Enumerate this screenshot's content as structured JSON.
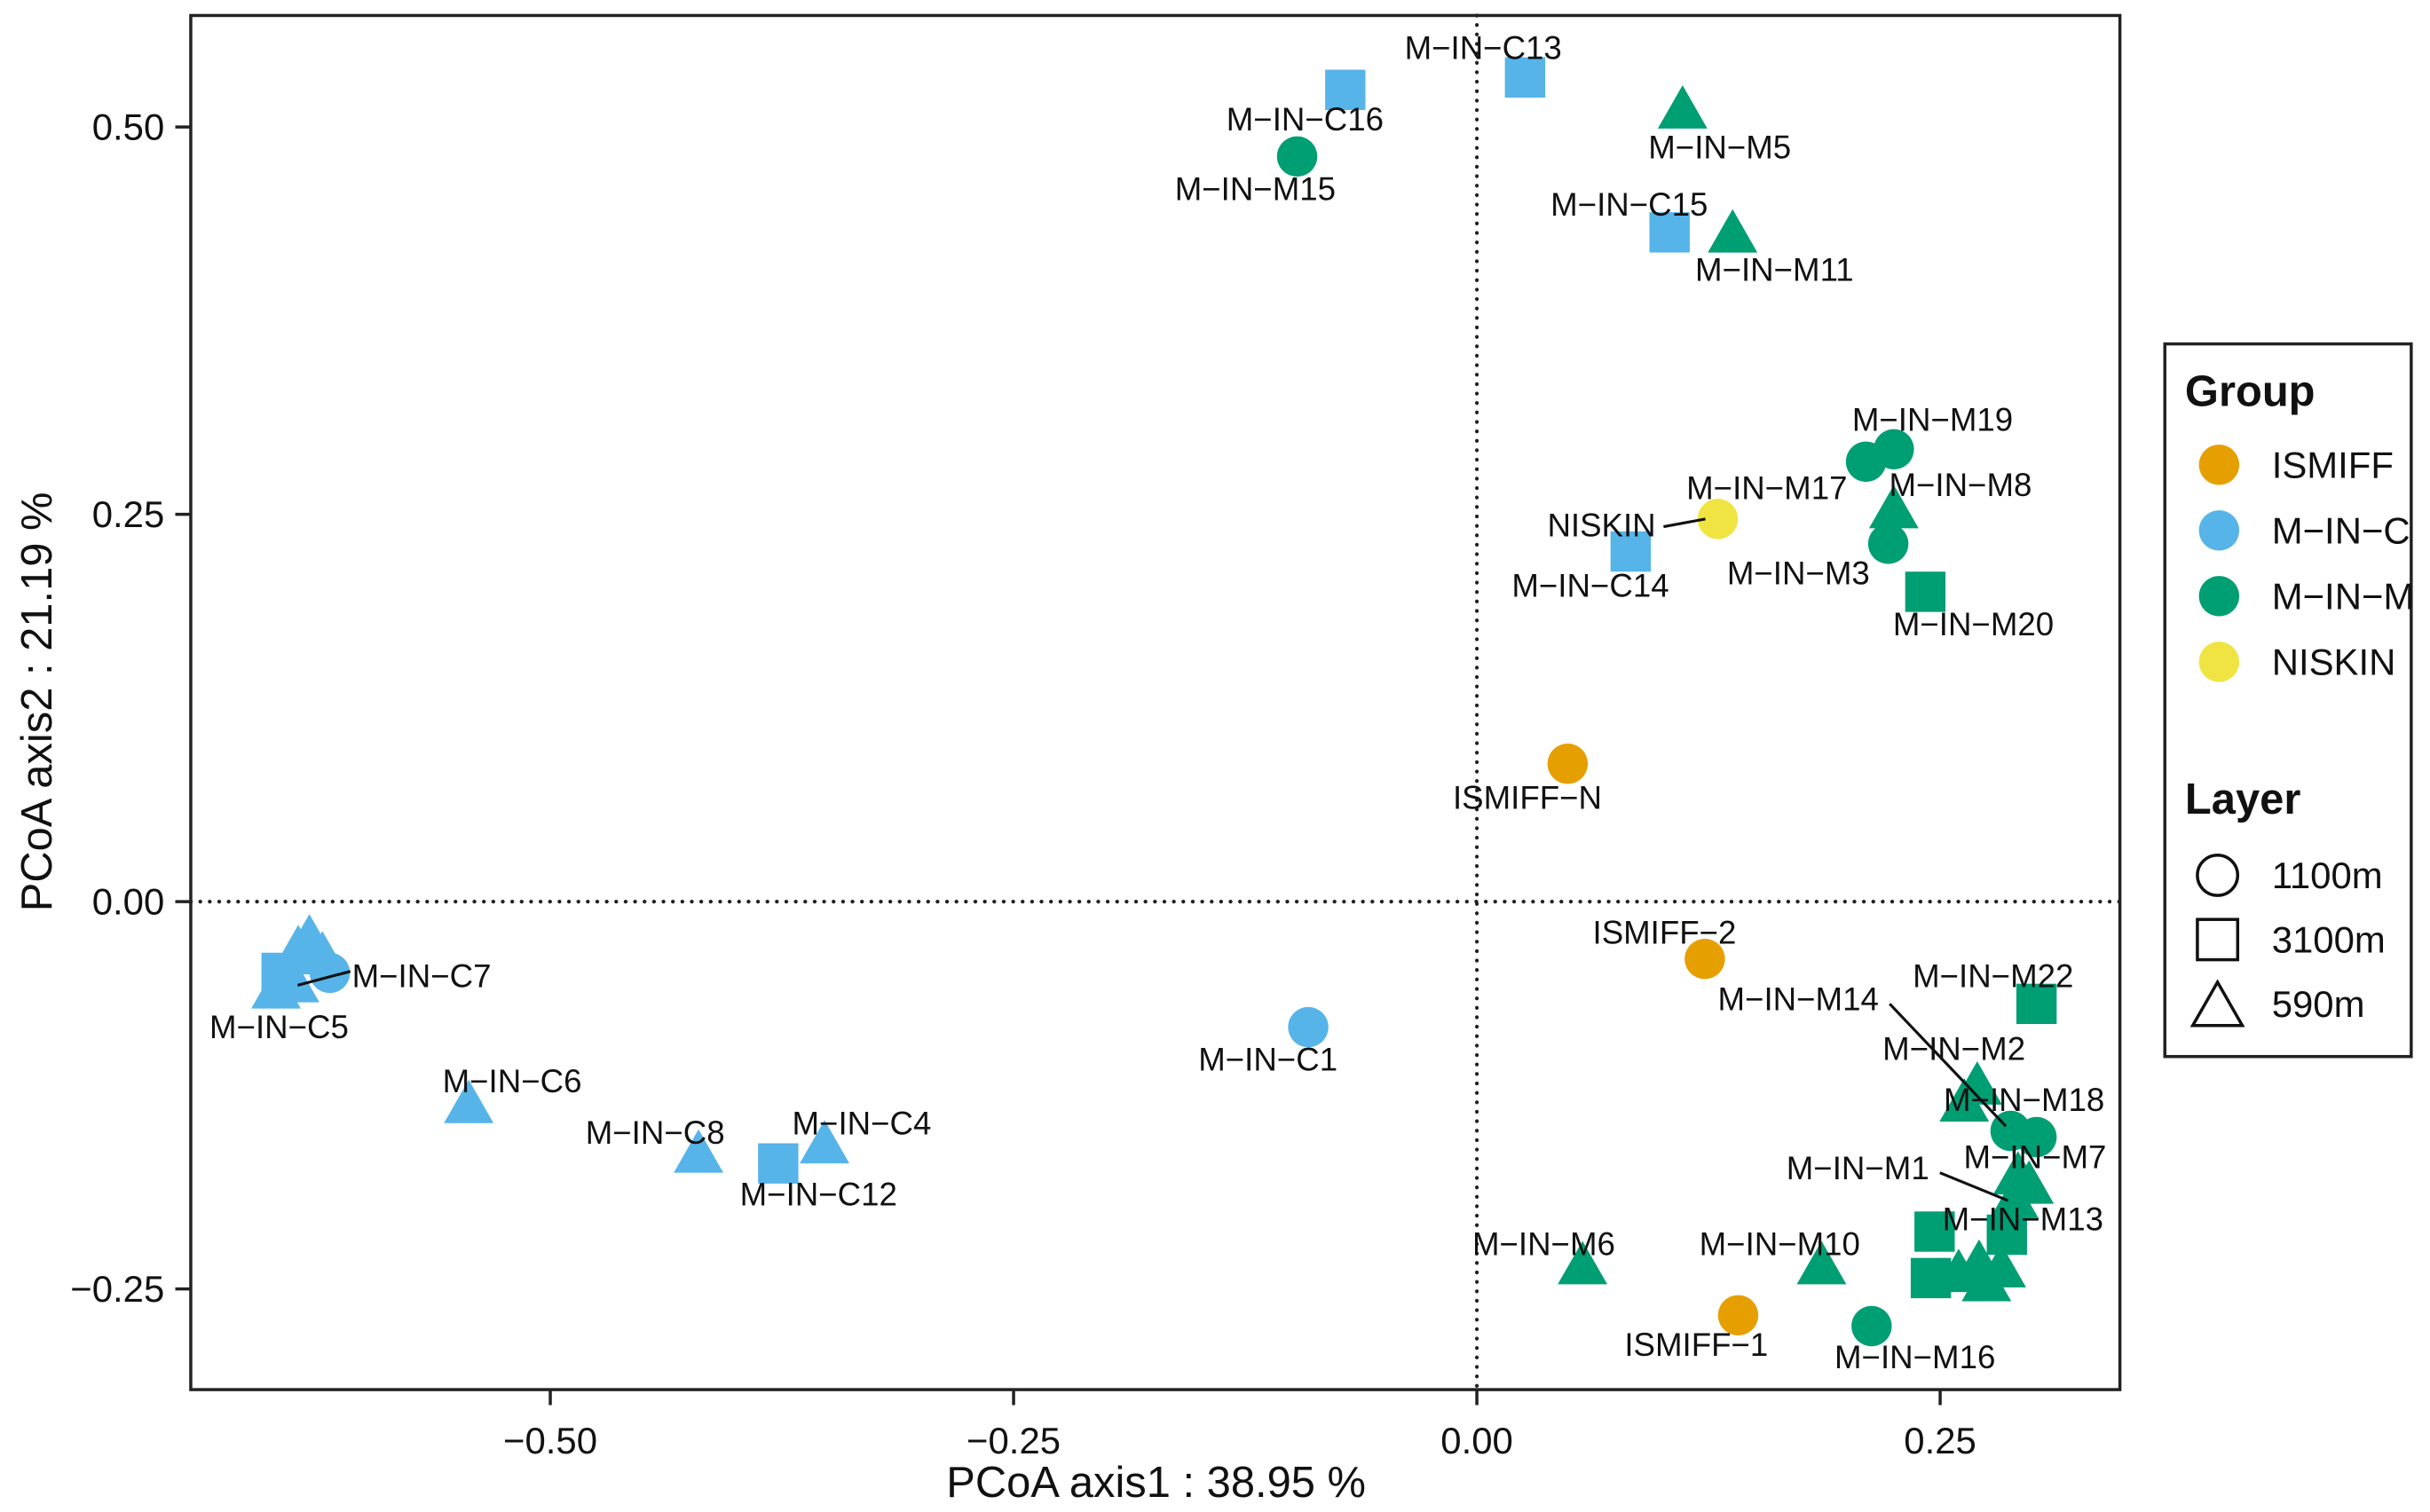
{
  "chart_data": {
    "type": "scatter",
    "xlabel": "PCoA axis1 : 38.95 %",
    "ylabel": "PCoA axis2 : 21.19 %",
    "xlim": [
      -0.694,
      0.347
    ],
    "ylim": [
      -0.315,
      0.572
    ],
    "xticks": [
      -0.5,
      -0.25,
      0,
      0.25
    ],
    "xtick_labels": [
      "−0.50",
      "−0.25",
      "0.00",
      "0.25"
    ],
    "yticks": [
      -0.25,
      0,
      0.25,
      0.5
    ],
    "ytick_labels": [
      "−0.25",
      "0.00",
      "0.25",
      "0.50"
    ],
    "grid": false,
    "reference_lines": {
      "x": 0,
      "y": 0
    },
    "legend": {
      "placement": "right",
      "group_title": "Group",
      "groups": [
        {
          "name": "ISMIFF",
          "color": "#E69F00"
        },
        {
          "name": "M−IN−C",
          "color": "#56B4E9"
        },
        {
          "name": "M−IN−M",
          "color": "#009E73"
        },
        {
          "name": "NISKIN",
          "color": "#F0E442"
        }
      ],
      "layer_title": "Layer",
      "layers": [
        {
          "name": "1100m",
          "shape": "circle"
        },
        {
          "name": "3100m",
          "shape": "square"
        },
        {
          "name": "590m",
          "shape": "triangle"
        }
      ]
    },
    "points": [
      {
        "label": "M−IN−C13",
        "x": 0.026,
        "y": 0.532,
        "group": "M−IN−C",
        "layer": "3100m"
      },
      {
        "label": "M−IN−C16",
        "x": -0.071,
        "y": 0.524,
        "group": "M−IN−C",
        "layer": "3100m"
      },
      {
        "label": "M−IN−M15",
        "x": -0.097,
        "y": 0.481,
        "group": "M−IN−M",
        "layer": "1100m"
      },
      {
        "label": "M−IN−M5",
        "x": 0.111,
        "y": 0.51,
        "group": "M−IN−M",
        "layer": "590m"
      },
      {
        "label": "M−IN−C15",
        "x": 0.104,
        "y": 0.432,
        "group": "M−IN−C",
        "layer": "3100m"
      },
      {
        "label": "M−IN−M11",
        "x": 0.138,
        "y": 0.43,
        "group": "M−IN−M",
        "layer": "590m"
      },
      {
        "label": "M−IN−M19",
        "x": 0.225,
        "y": 0.292,
        "group": "M−IN−M",
        "layer": "1100m"
      },
      {
        "label": "M−IN−M17",
        "x": 0.21,
        "y": 0.284,
        "group": "M−IN−M",
        "layer": "1100m"
      },
      {
        "label": "M−IN−M8",
        "x": 0.225,
        "y": 0.252,
        "group": "M−IN−M",
        "layer": "590m"
      },
      {
        "label": "M−IN−M3",
        "x": 0.222,
        "y": 0.231,
        "group": "M−IN−M",
        "layer": "1100m"
      },
      {
        "label": "M−IN−M20",
        "x": 0.242,
        "y": 0.2,
        "group": "M−IN−M",
        "layer": "3100m"
      },
      {
        "label": "NISKIN",
        "x": 0.13,
        "y": 0.247,
        "group": "NISKIN",
        "layer": "1100m"
      },
      {
        "label": "M−IN−C14",
        "x": 0.083,
        "y": 0.226,
        "group": "M−IN−C",
        "layer": "3100m"
      },
      {
        "label": "ISMIFF−N",
        "x": 0.049,
        "y": 0.089,
        "group": "ISMIFF",
        "layer": "1100m"
      },
      {
        "label": "ISMIFF−2",
        "x": 0.123,
        "y": -0.037,
        "group": "ISMIFF",
        "layer": "1100m"
      },
      {
        "label": "M−IN−C1",
        "x": -0.091,
        "y": -0.081,
        "group": "M−IN−C",
        "layer": "1100m"
      },
      {
        "label": "M−IN−M22",
        "x": 0.302,
        "y": -0.066,
        "group": "M−IN−M",
        "layer": "3100m"
      },
      {
        "label": "M−IN−M2",
        "x": 0.27,
        "y": -0.12,
        "group": "M−IN−M",
        "layer": "590m"
      },
      {
        "label": "",
        "x": 0.263,
        "y": -0.131,
        "group": "M−IN−M",
        "layer": "590m"
      },
      {
        "label": "M−IN−M14",
        "x": 0.288,
        "y": -0.148,
        "group": "M−IN−M",
        "layer": "1100m"
      },
      {
        "label": "M−IN−M18",
        "x": 0.302,
        "y": -0.152,
        "group": "M−IN−M",
        "layer": "1100m"
      },
      {
        "label": "M−IN−M7",
        "x": 0.292,
        "y": -0.178,
        "group": "M−IN−M",
        "layer": "590m"
      },
      {
        "label": "M−IN−M13",
        "x": 0.298,
        "y": -0.184,
        "group": "M−IN−M",
        "layer": "590m"
      },
      {
        "label": "M−IN−M1",
        "x": 0.29,
        "y": -0.194,
        "group": "M−IN−M",
        "layer": "590m"
      },
      {
        "label": "",
        "x": 0.247,
        "y": -0.213,
        "group": "M−IN−M",
        "layer": "3100m"
      },
      {
        "label": "",
        "x": 0.286,
        "y": -0.215,
        "group": "M−IN−M",
        "layer": "3100m"
      },
      {
        "label": "",
        "x": 0.245,
        "y": -0.243,
        "group": "M−IN−M",
        "layer": "3100m"
      },
      {
        "label": "",
        "x": 0.271,
        "y": -0.235,
        "group": "M−IN−M",
        "layer": "590m"
      },
      {
        "label": "",
        "x": 0.283,
        "y": -0.238,
        "group": "M−IN−M",
        "layer": "590m"
      },
      {
        "label": "",
        "x": 0.275,
        "y": -0.247,
        "group": "M−IN−M",
        "layer": "590m"
      },
      {
        "label": "",
        "x": 0.26,
        "y": -0.241,
        "group": "M−IN−M",
        "layer": "590m"
      },
      {
        "label": "M−IN−M16",
        "x": 0.213,
        "y": -0.274,
        "group": "M−IN−M",
        "layer": "1100m"
      },
      {
        "label": "M−IN−M10",
        "x": 0.186,
        "y": -0.236,
        "group": "M−IN−M",
        "layer": "590m"
      },
      {
        "label": "M−IN−M6",
        "x": 0.057,
        "y": -0.236,
        "group": "M−IN−M",
        "layer": "590m"
      },
      {
        "label": "ISMIFF−1",
        "x": 0.141,
        "y": -0.267,
        "group": "ISMIFF",
        "layer": "1100m"
      },
      {
        "label": "",
        "x": -0.645,
        "y": -0.046,
        "group": "M−IN−C",
        "layer": "3100m"
      },
      {
        "label": "",
        "x": -0.619,
        "y": -0.046,
        "group": "M−IN−C",
        "layer": "1100m"
      },
      {
        "label": "M−IN−C7",
        "x": -0.638,
        "y": -0.054,
        "group": "M−IN−C",
        "layer": "590m"
      },
      {
        "label": "M−IN−C5",
        "x": -0.648,
        "y": -0.058,
        "group": "M−IN−C",
        "layer": "590m"
      },
      {
        "label": "",
        "x": -0.63,
        "y": -0.025,
        "group": "M−IN−C",
        "layer": "590m"
      },
      {
        "label": "",
        "x": -0.636,
        "y": -0.032,
        "group": "M−IN−C",
        "layer": "590m"
      },
      {
        "label": "",
        "x": -0.623,
        "y": -0.036,
        "group": "M−IN−C",
        "layer": "590m"
      },
      {
        "label": "M−IN−C6",
        "x": -0.544,
        "y": -0.132,
        "group": "M−IN−C",
        "layer": "590m"
      },
      {
        "label": "M−IN−C8",
        "x": -0.42,
        "y": -0.164,
        "group": "M−IN−C",
        "layer": "590m"
      },
      {
        "label": "M−IN−C12",
        "x": -0.377,
        "y": -0.169,
        "group": "M−IN−C",
        "layer": "3100m"
      },
      {
        "label": "M−IN−C4",
        "x": -0.352,
        "y": -0.158,
        "group": "M−IN−C",
        "layer": "590m"
      }
    ]
  }
}
